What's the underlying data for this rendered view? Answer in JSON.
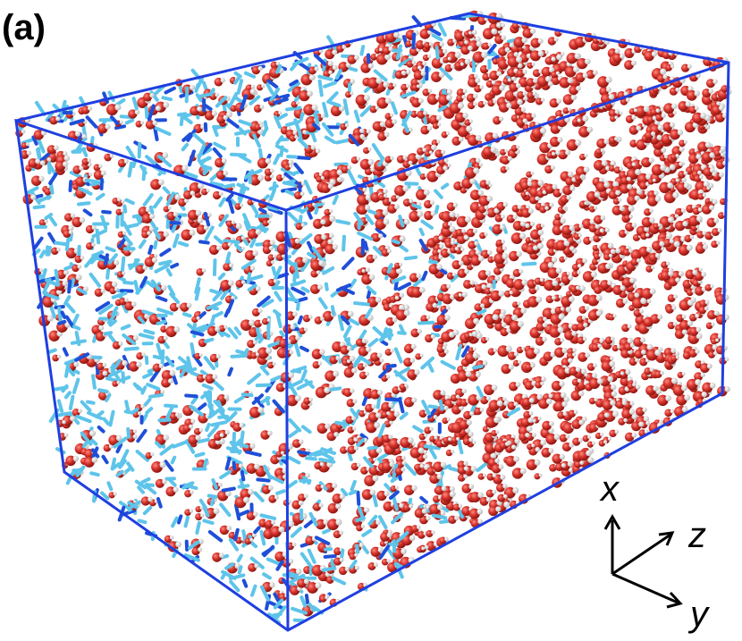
{
  "panel_label": "(a)",
  "axes": {
    "x": "x",
    "z": "z",
    "y": "y"
  }
}
